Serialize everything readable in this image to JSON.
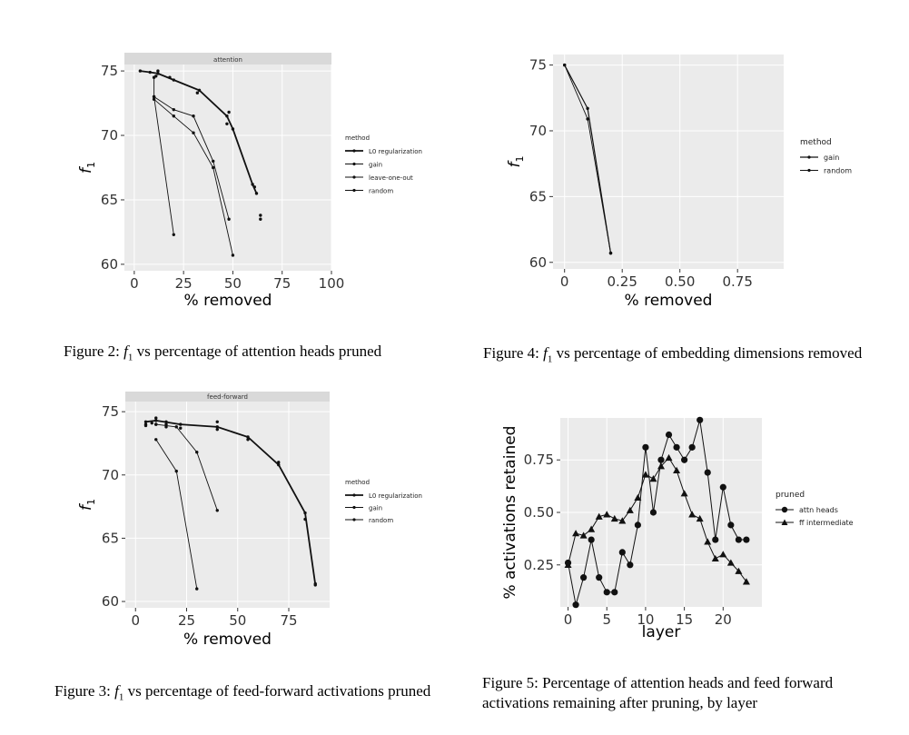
{
  "captions": {
    "fig2": {
      "prefix": "Figure 2: ",
      "var": "f",
      "sub": "1",
      "rest": " vs percentage of attention heads pruned"
    },
    "fig4": {
      "prefix": "Figure 4: ",
      "var": "f",
      "sub": "1",
      "rest": " vs percentage of embedding dimensions removed"
    },
    "fig3": {
      "prefix": "Figure 3: ",
      "var": "f",
      "sub": "1",
      "rest": " vs percentage of feed-forward activations pruned"
    },
    "fig5": {
      "text": "Figure 5: Percentage of attention heads and feed forward activations remaining after pruning, by layer"
    }
  },
  "chart_data": [
    {
      "id": "fig2",
      "type": "line",
      "facet": "attention",
      "xlabel": "% removed",
      "ylabel": "f1",
      "xlim": [
        -5,
        100
      ],
      "ylim": [
        59.5,
        75.5
      ],
      "xticks": [
        0,
        25,
        50,
        75,
        100
      ],
      "yticks": [
        60,
        65,
        70,
        75
      ],
      "legend_title": "method",
      "series": [
        {
          "name": "L0 regularization",
          "width": 1.8,
          "points": [
            [
              3,
              75
            ],
            [
              8,
              74.9
            ],
            [
              12,
              74.8
            ],
            [
              20,
              74.3
            ],
            [
              33,
              73.5
            ],
            [
              47,
              71.5
            ],
            [
              50,
              70.5
            ],
            [
              60,
              66.2
            ],
            [
              62,
              65.5
            ]
          ],
          "extra": [
            [
              12,
              75
            ],
            [
              11,
              74.6
            ],
            [
              18,
              74.5
            ],
            [
              32,
              73.3
            ],
            [
              48,
              71.8
            ],
            [
              47,
              70.9
            ],
            [
              61,
              66
            ],
            [
              64,
              63.8
            ],
            [
              64,
              63.5
            ]
          ]
        },
        {
          "name": "gain",
          "width": 0.9,
          "points": [
            [
              10,
              73
            ],
            [
              20,
              72
            ],
            [
              30,
              71.5
            ],
            [
              40,
              68
            ],
            [
              48,
              63.5
            ]
          ],
          "extra": []
        },
        {
          "name": "leave-one-out",
          "width": 0.9,
          "points": [
            [
              10,
              72.8
            ],
            [
              20,
              71.5
            ],
            [
              30,
              70.2
            ],
            [
              40,
              67.5
            ],
            [
              50,
              60.7
            ]
          ],
          "extra": []
        },
        {
          "name": "random",
          "width": 0.9,
          "points": [
            [
              10,
              74.5
            ],
            [
              10,
              73
            ],
            [
              20,
              62.3
            ]
          ],
          "extra": []
        }
      ]
    },
    {
      "id": "fig4",
      "type": "line",
      "facet": "",
      "xlabel": "% removed",
      "ylabel": "f1",
      "xlim": [
        -0.05,
        0.95
      ],
      "ylim": [
        59.5,
        75.8
      ],
      "xticks": [
        0,
        0.25,
        0.5,
        0.75
      ],
      "xticklabels": [
        "0",
        "0.25",
        "0.50",
        "0.75"
      ],
      "yticks": [
        60,
        65,
        70,
        75
      ],
      "legend_title": "method",
      "series": [
        {
          "name": "gain",
          "width": 1.2,
          "points": [
            [
              0,
              75
            ],
            [
              0.1,
              71.7
            ],
            [
              0.2,
              60.7
            ]
          ],
          "extra": []
        },
        {
          "name": "random",
          "width": 0.9,
          "points": [
            [
              0,
              75
            ],
            [
              0.1,
              70.9
            ],
            [
              0.2,
              60.7
            ]
          ],
          "extra": []
        }
      ]
    },
    {
      "id": "fig3",
      "type": "line",
      "facet": "feed-forward",
      "xlabel": "% removed",
      "ylabel": "f1",
      "xlim": [
        -5,
        95
      ],
      "ylim": [
        59.5,
        75.8
      ],
      "xticks": [
        0,
        25,
        50,
        75
      ],
      "yticks": [
        60,
        65,
        70,
        75
      ],
      "legend_title": "method",
      "series": [
        {
          "name": "L0 regularization",
          "width": 1.8,
          "points": [
            [
              5,
              74.2
            ],
            [
              10,
              74.3
            ],
            [
              22,
              74
            ],
            [
              40,
              73.8
            ],
            [
              55,
              73
            ],
            [
              70,
              70.8
            ],
            [
              83,
              67
            ],
            [
              88,
              61.3
            ]
          ],
          "extra": [
            [
              5,
              74
            ],
            [
              5,
              73.9
            ],
            [
              8,
              74.1
            ],
            [
              10,
              74.5
            ],
            [
              10,
              74
            ],
            [
              15,
              74.2
            ],
            [
              15,
              74
            ],
            [
              22,
              73.7
            ],
            [
              40,
              74.2
            ],
            [
              40,
              73.6
            ],
            [
              55,
              72.8
            ],
            [
              70,
              71
            ],
            [
              83,
              66.5
            ],
            [
              88,
              61.4
            ]
          ]
        },
        {
          "name": "gain",
          "width": 0.9,
          "points": [
            [
              10,
              72.8
            ],
            [
              20,
              70.3
            ],
            [
              30,
              61
            ]
          ],
          "extra": []
        },
        {
          "name": "random",
          "width": 0.9,
          "points": [
            [
              10,
              74
            ],
            [
              20,
              73.8
            ],
            [
              30,
              71.8
            ],
            [
              40,
              67.2
            ]
          ],
          "extra": [
            [
              15,
              73.8
            ]
          ]
        }
      ]
    },
    {
      "id": "fig5",
      "type": "line",
      "facet": "",
      "xlabel": "layer",
      "ylabel": "% activations retained",
      "xlim": [
        -1,
        25
      ],
      "ylim": [
        0.05,
        0.95
      ],
      "xticks": [
        0,
        5,
        10,
        15,
        20
      ],
      "yticks": [
        0.25,
        0.5,
        0.75
      ],
      "yticklabels": [
        "0.25",
        "0.50",
        "0.75"
      ],
      "legend_title": "pruned",
      "series": [
        {
          "name": "attn heads",
          "marker": "circle",
          "x": [
            0,
            1,
            2,
            3,
            4,
            5,
            6,
            7,
            8,
            9,
            10,
            11,
            12,
            13,
            14,
            15,
            16,
            17,
            18,
            19,
            20,
            21,
            22,
            23
          ],
          "values": [
            0.26,
            0.06,
            0.19,
            0.37,
            0.19,
            0.12,
            0.12,
            0.31,
            0.25,
            0.44,
            0.81,
            0.5,
            0.75,
            0.87,
            0.81,
            0.75,
            0.81,
            0.94,
            0.69,
            0.37,
            0.62,
            0.44,
            0.37,
            0.37
          ]
        },
        {
          "name": "ff intermediate",
          "marker": "triangle",
          "x": [
            0,
            1,
            2,
            3,
            4,
            5,
            6,
            7,
            8,
            9,
            10,
            11,
            12,
            13,
            14,
            15,
            16,
            17,
            18,
            19,
            20,
            21,
            22,
            23
          ],
          "values": [
            0.25,
            0.4,
            0.39,
            0.42,
            0.48,
            0.49,
            0.47,
            0.46,
            0.51,
            0.57,
            0.68,
            0.66,
            0.72,
            0.76,
            0.7,
            0.59,
            0.49,
            0.47,
            0.36,
            0.28,
            0.3,
            0.26,
            0.22,
            0.17
          ]
        }
      ]
    }
  ]
}
